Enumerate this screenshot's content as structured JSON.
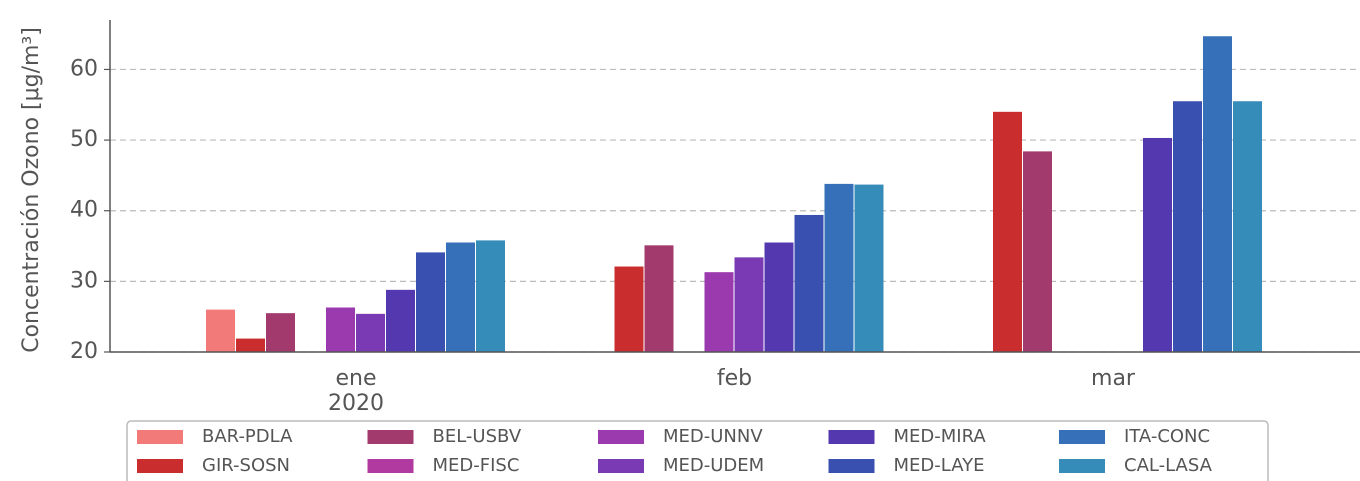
{
  "chart_data": {
    "type": "bar",
    "y_label": "Concentración Ozono [μg/m³]",
    "categories": [
      "ene",
      "feb",
      "mar"
    ],
    "year_label": "2020",
    "series": [
      {
        "name": "BAR-PDLA",
        "color": "#f27b79",
        "values": [
          26,
          null,
          null
        ]
      },
      {
        "name": "GIR-SOSN",
        "color": "#c92d2e",
        "values": [
          21.9,
          32.1,
          54
        ]
      },
      {
        "name": "BEL-USBV",
        "color": "#a33a6e",
        "values": [
          25.5,
          35.1,
          48.4
        ]
      },
      {
        "name": "MED-FISC",
        "color": "#b03aa0",
        "values": [
          null,
          null,
          null
        ]
      },
      {
        "name": "MED-UNNV",
        "color": "#9a3aae",
        "values": [
          26.3,
          31.3,
          null
        ]
      },
      {
        "name": "MED-UDEM",
        "color": "#7a3ab4",
        "values": [
          25.4,
          33.4,
          null
        ]
      },
      {
        "name": "MED-MIRA",
        "color": "#5438b0",
        "values": [
          28.8,
          35.5,
          50.3
        ]
      },
      {
        "name": "MED-LAYE",
        "color": "#3a50b0",
        "values": [
          34.1,
          39.4,
          55.5
        ]
      },
      {
        "name": "ITA-CONC",
        "color": "#3670b8",
        "values": [
          35.5,
          43.8,
          64.7
        ]
      },
      {
        "name": "CAL-LASA",
        "color": "#368cb8",
        "values": [
          35.8,
          43.7,
          55.5
        ]
      }
    ],
    "ylim": [
      20,
      67
    ],
    "yticks": [
      20,
      30,
      40,
      50,
      60
    ],
    "grid": true,
    "legend": "bottom"
  }
}
